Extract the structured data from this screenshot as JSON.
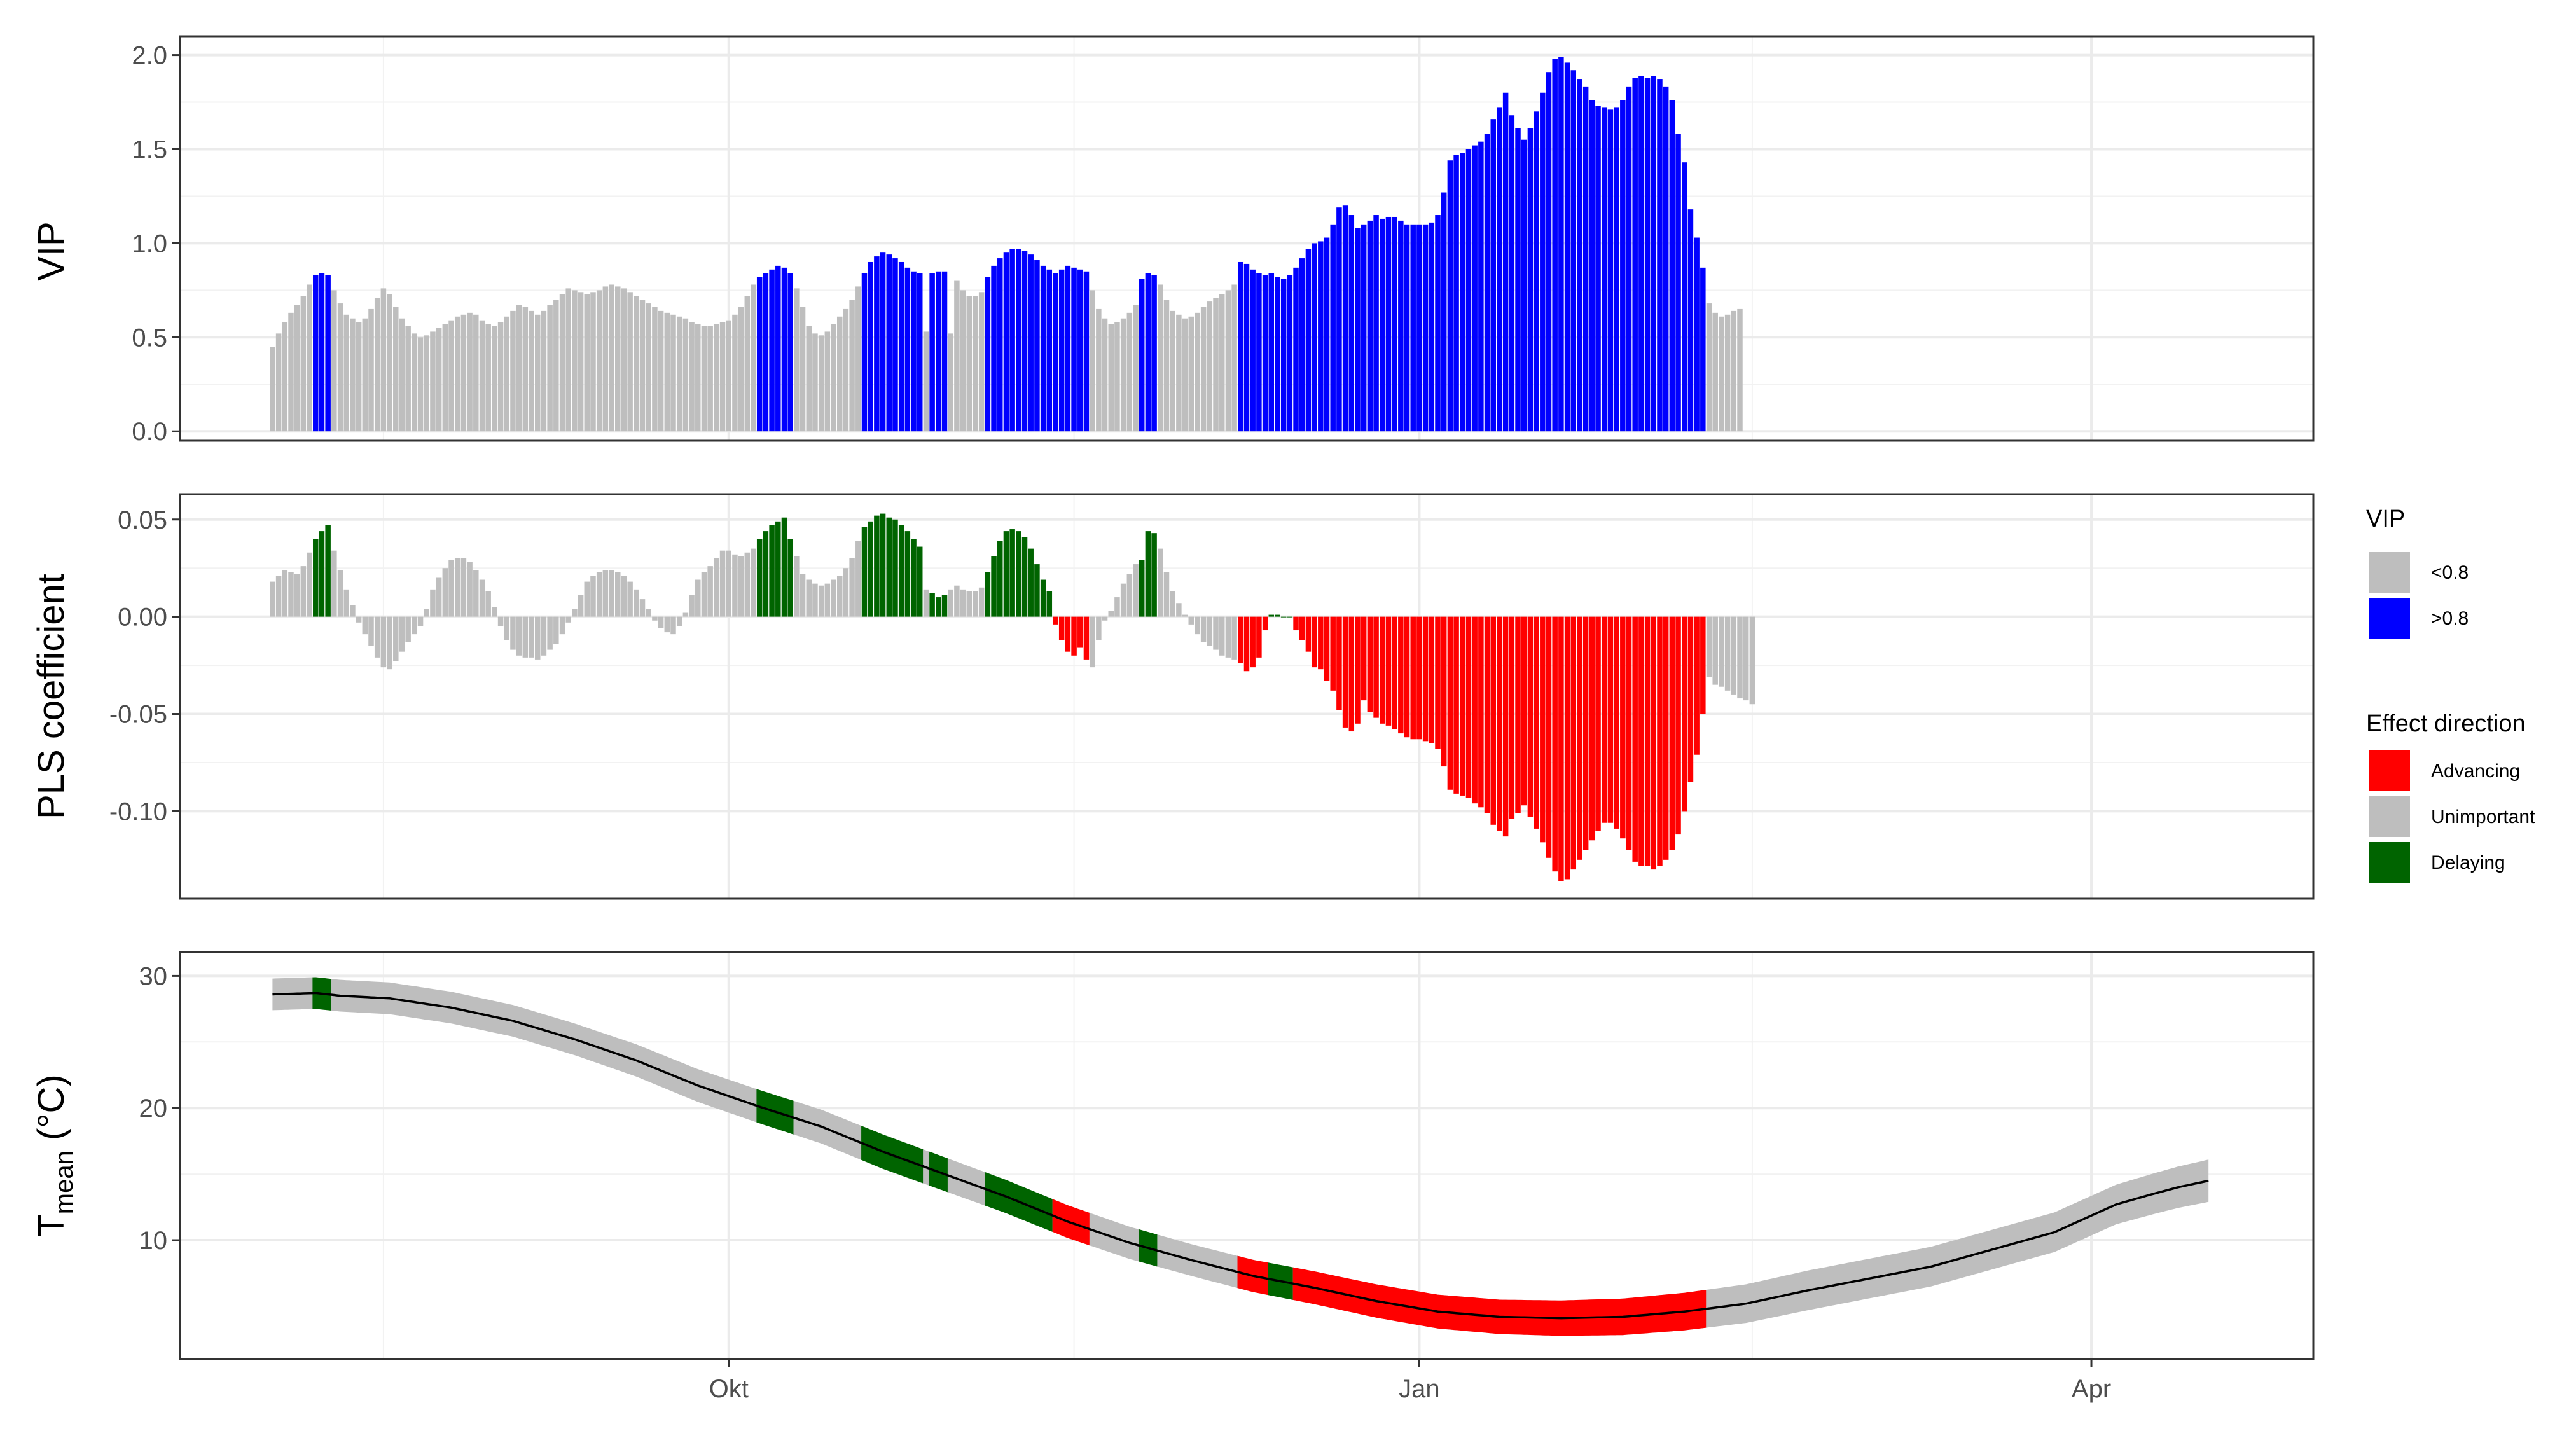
{
  "chart_data": [
    {
      "id": "vip",
      "type": "bar",
      "ylabel": "VIP",
      "ylim": [
        -0.05,
        2.1
      ],
      "y_ticks": [
        {
          "value": 0.0,
          "label": "0.0"
        },
        {
          "value": 0.5,
          "label": "0.5"
        },
        {
          "value": 1.0,
          "label": "1.0"
        },
        {
          "value": 1.5,
          "label": "1.5"
        },
        {
          "value": 2.0,
          "label": "2.0"
        }
      ],
      "grid": true,
      "series": [
        {
          "name": "VIP",
          "day_start": 1,
          "values": [
            0.45,
            0.52,
            0.58,
            0.63,
            0.67,
            0.72,
            0.78,
            0.83,
            0.84,
            0.83,
            0.75,
            0.68,
            0.62,
            0.6,
            0.58,
            0.6,
            0.65,
            0.71,
            0.76,
            0.73,
            0.66,
            0.6,
            0.56,
            0.52,
            0.5,
            0.51,
            0.53,
            0.55,
            0.57,
            0.59,
            0.61,
            0.62,
            0.63,
            0.62,
            0.59,
            0.57,
            0.56,
            0.58,
            0.61,
            0.64,
            0.67,
            0.66,
            0.64,
            0.62,
            0.64,
            0.67,
            0.7,
            0.73,
            0.76,
            0.75,
            0.74,
            0.73,
            0.74,
            0.75,
            0.77,
            0.78,
            0.77,
            0.76,
            0.74,
            0.72,
            0.7,
            0.68,
            0.66,
            0.64,
            0.63,
            0.62,
            0.61,
            0.6,
            0.58,
            0.57,
            0.56,
            0.56,
            0.57,
            0.58,
            0.59,
            0.62,
            0.66,
            0.72,
            0.78,
            0.82,
            0.84,
            0.86,
            0.88,
            0.87,
            0.84,
            0.76,
            0.66,
            0.56,
            0.52,
            0.51,
            0.53,
            0.57,
            0.61,
            0.65,
            0.7,
            0.77,
            0.84,
            0.9,
            0.93,
            0.95,
            0.94,
            0.92,
            0.9,
            0.87,
            0.85,
            0.84,
            0.53,
            0.84,
            0.85,
            0.85,
            0.52,
            0.8,
            0.75,
            0.72,
            0.72,
            0.74,
            0.82,
            0.88,
            0.92,
            0.95,
            0.97,
            0.97,
            0.96,
            0.94,
            0.91,
            0.88,
            0.86,
            0.84,
            0.86,
            0.88,
            0.87,
            0.86,
            0.85,
            0.75,
            0.65,
            0.6,
            0.57,
            0.58,
            0.6,
            0.63,
            0.67,
            0.81,
            0.84,
            0.83,
            0.78,
            0.7,
            0.64,
            0.62,
            0.6,
            0.61,
            0.63,
            0.66,
            0.69,
            0.71,
            0.73,
            0.75,
            0.78,
            0.9,
            0.89,
            0.86,
            0.84,
            0.83,
            0.84,
            0.82,
            0.81,
            0.83,
            0.87,
            0.92,
            0.97,
            1.0,
            1.01,
            1.03,
            1.1,
            1.19,
            1.2,
            1.15,
            1.08,
            1.1,
            1.12,
            1.15,
            1.13,
            1.14,
            1.14,
            1.12,
            1.1,
            1.1,
            1.1,
            1.1,
            1.11,
            1.15,
            1.27,
            1.44,
            1.47,
            1.48,
            1.5,
            1.52,
            1.54,
            1.58,
            1.66,
            1.72,
            1.8,
            1.68,
            1.61,
            1.55,
            1.61,
            1.7,
            1.8,
            1.91,
            1.98,
            1.99,
            1.96,
            1.92,
            1.87,
            1.83,
            1.76,
            1.73,
            1.72,
            1.71,
            1.72,
            1.76,
            1.83,
            1.88,
            1.89,
            1.88,
            1.89,
            1.87,
            1.83,
            1.76,
            1.58,
            1.43,
            1.18,
            1.03,
            0.87,
            0.68,
            0.63,
            0.61,
            0.62,
            0.64,
            0.65
          ]
        }
      ]
    },
    {
      "id": "pls",
      "type": "bar",
      "ylabel": "PLS coefficient",
      "ylim": [
        -0.145,
        0.063
      ],
      "y_ticks": [
        {
          "value": 0.05,
          "label": "0.05"
        },
        {
          "value": 0.0,
          "label": "0.00"
        },
        {
          "value": -0.05,
          "label": "-0.05"
        },
        {
          "value": -0.1,
          "label": "-0.10"
        }
      ],
      "grid": true,
      "series": [
        {
          "name": "PLS coefficient",
          "day_start": 1,
          "values": [
            0.018,
            0.021,
            0.024,
            0.023,
            0.022,
            0.026,
            0.033,
            0.04,
            0.044,
            0.047,
            0.034,
            0.024,
            0.014,
            0.006,
            -0.003,
            -0.009,
            -0.015,
            -0.021,
            -0.026,
            -0.027,
            -0.023,
            -0.018,
            -0.013,
            -0.009,
            -0.005,
            0.004,
            0.014,
            0.02,
            0.025,
            0.029,
            0.03,
            0.03,
            0.028,
            0.024,
            0.019,
            0.013,
            0.005,
            -0.005,
            -0.012,
            -0.017,
            -0.02,
            -0.021,
            -0.021,
            -0.022,
            -0.02,
            -0.017,
            -0.014,
            -0.009,
            -0.003,
            0.004,
            0.011,
            0.018,
            0.021,
            0.023,
            0.024,
            0.024,
            0.023,
            0.021,
            0.018,
            0.014,
            0.009,
            0.004,
            -0.002,
            -0.006,
            -0.008,
            -0.009,
            -0.005,
            0.002,
            0.011,
            0.019,
            0.023,
            0.026,
            0.03,
            0.034,
            0.034,
            0.032,
            0.031,
            0.033,
            0.035,
            0.04,
            0.044,
            0.047,
            0.049,
            0.051,
            0.04,
            0.031,
            0.022,
            0.019,
            0.017,
            0.016,
            0.017,
            0.019,
            0.021,
            0.025,
            0.03,
            0.039,
            0.046,
            0.049,
            0.052,
            0.053,
            0.051,
            0.05,
            0.047,
            0.044,
            0.04,
            0.036,
            0.014,
            0.012,
            0.01,
            0.011,
            0.014,
            0.016,
            0.014,
            0.013,
            0.013,
            0.015,
            0.023,
            0.031,
            0.039,
            0.044,
            0.045,
            0.044,
            0.041,
            0.035,
            0.027,
            0.019,
            0.013,
            -0.004,
            -0.012,
            -0.018,
            -0.02,
            -0.016,
            -0.022,
            -0.026,
            -0.012,
            -0.002,
            0.003,
            0.01,
            0.017,
            0.022,
            0.027,
            0.029,
            0.044,
            0.043,
            0.035,
            0.023,
            0.013,
            0.007,
            0.001,
            -0.004,
            -0.009,
            -0.013,
            -0.015,
            -0.017,
            -0.02,
            -0.021,
            -0.022,
            -0.024,
            -0.028,
            -0.026,
            -0.021,
            -0.007,
            0.001,
            0.001,
            0.0,
            0.0,
            -0.007,
            -0.012,
            -0.018,
            -0.026,
            -0.027,
            -0.033,
            -0.038,
            -0.048,
            -0.057,
            -0.059,
            -0.055,
            -0.043,
            -0.049,
            -0.052,
            -0.055,
            -0.056,
            -0.058,
            -0.06,
            -0.062,
            -0.063,
            -0.063,
            -0.064,
            -0.065,
            -0.068,
            -0.077,
            -0.089,
            -0.091,
            -0.092,
            -0.093,
            -0.096,
            -0.098,
            -0.101,
            -0.107,
            -0.11,
            -0.113,
            -0.104,
            -0.101,
            -0.097,
            -0.103,
            -0.109,
            -0.116,
            -0.124,
            -0.131,
            -0.136,
            -0.135,
            -0.13,
            -0.125,
            -0.12,
            -0.115,
            -0.11,
            -0.106,
            -0.106,
            -0.109,
            -0.114,
            -0.12,
            -0.126,
            -0.128,
            -0.128,
            -0.13,
            -0.128,
            -0.125,
            -0.12,
            -0.112,
            -0.1,
            -0.085,
            -0.071,
            -0.05,
            -0.031,
            -0.035,
            -0.036,
            -0.038,
            -0.04,
            -0.042,
            -0.043,
            -0.045
          ]
        }
      ]
    },
    {
      "id": "temp",
      "type": "line",
      "ylabel_main": "T",
      "ylabel_sub": "mean",
      "ylabel_rest": " (°C)",
      "ylim": [
        1.0,
        31.8
      ],
      "y_ticks": [
        {
          "value": 30,
          "label": "30"
        },
        {
          "value": 20,
          "label": "20"
        },
        {
          "value": 10,
          "label": "10"
        }
      ],
      "grid": true,
      "series": [
        {
          "name": "mean",
          "points": [
            [
              1,
              28.6
            ],
            [
              8,
              28.7
            ],
            [
              12,
              28.5
            ],
            [
              20,
              28.3
            ],
            [
              30,
              27.6
            ],
            [
              40,
              26.6
            ],
            [
              50,
              25.2
            ],
            [
              60,
              23.6
            ],
            [
              70,
              21.7
            ],
            [
              80,
              20.1
            ],
            [
              90,
              18.6
            ],
            [
              100,
              16.7
            ],
            [
              110,
              15.0
            ],
            [
              120,
              13.3
            ],
            [
              130,
              11.4
            ],
            [
              140,
              9.8
            ],
            [
              150,
              8.5
            ],
            [
              160,
              7.3
            ],
            [
              170,
              6.4
            ],
            [
              180,
              5.4
            ],
            [
              190,
              4.6
            ],
            [
              200,
              4.2
            ],
            [
              210,
              4.1
            ],
            [
              220,
              4.2
            ],
            [
              230,
              4.6
            ],
            [
              240,
              5.2
            ],
            [
              250,
              6.2
            ],
            [
              260,
              7.1
            ],
            [
              270,
              8.0
            ],
            [
              280,
              9.3
            ],
            [
              290,
              10.6
            ],
            [
              300,
              12.7
            ],
            [
              306,
              13.5
            ],
            [
              310,
              14.0
            ],
            [
              315,
              14.5
            ]
          ]
        },
        {
          "name": "sd",
          "points": [
            [
              1,
              1.2
            ],
            [
              50,
              1.2
            ],
            [
              100,
              1.3
            ],
            [
              150,
              1.2
            ],
            [
              200,
              1.3
            ],
            [
              250,
              1.5
            ],
            [
              300,
              1.5
            ],
            [
              315,
              1.6
            ]
          ]
        }
      ]
    }
  ],
  "shared_x": {
    "day_min": -14,
    "day_max": 332,
    "ticks": [
      {
        "day": 75,
        "label": "Okt"
      },
      {
        "day": 187,
        "label": "Jan"
      },
      {
        "day": 296,
        "label": "Apr"
      }
    ],
    "minor_ticks": [
      19,
      131,
      241
    ]
  },
  "legend": {
    "vip_title": "VIP",
    "vip_items": [
      {
        "label": "<0.8",
        "color": "#bebebe"
      },
      {
        "label": ">0.8",
        "color": "#0000ff"
      }
    ],
    "effect_title": "Effect direction",
    "effect_items": [
      {
        "label": "Advancing",
        "color": "#ff0000"
      },
      {
        "label": "Unimportant",
        "color": "#bebebe"
      },
      {
        "label": "Delaying",
        "color": "#006400"
      }
    ]
  },
  "colors": {
    "unimportant": "#bebebe",
    "important": "#0000ff",
    "advancing": "#ff0000",
    "delaying": "#006400",
    "line": "#000000"
  },
  "vip_threshold": 0.8
}
